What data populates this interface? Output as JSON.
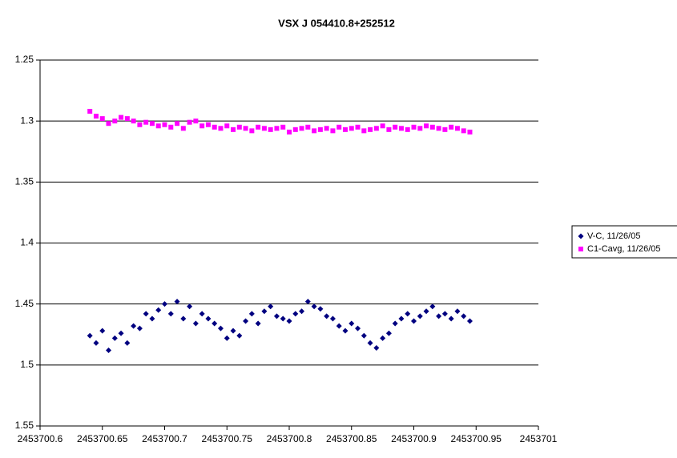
{
  "chart_data": {
    "type": "scatter",
    "title": "VSX J 054410.8+252512",
    "x": [
      2453700.64,
      2453700.645,
      2453700.65,
      2453700.655,
      2453700.66,
      2453700.665,
      2453700.67,
      2453700.675,
      2453700.68,
      2453700.685,
      2453700.69,
      2453700.695,
      2453700.7,
      2453700.705,
      2453700.71,
      2453700.715,
      2453700.72,
      2453700.725,
      2453700.73,
      2453700.735,
      2453700.74,
      2453700.745,
      2453700.75,
      2453700.755,
      2453700.76,
      2453700.765,
      2453700.77,
      2453700.775,
      2453700.78,
      2453700.785,
      2453700.79,
      2453700.795,
      2453700.8,
      2453700.805,
      2453700.81,
      2453700.815,
      2453700.82,
      2453700.825,
      2453700.83,
      2453700.835,
      2453700.84,
      2453700.845,
      2453700.85,
      2453700.855,
      2453700.86,
      2453700.865,
      2453700.87,
      2453700.875,
      2453700.88,
      2453700.885,
      2453700.89,
      2453700.895,
      2453700.9,
      2453700.905,
      2453700.91,
      2453700.915,
      2453700.92,
      2453700.925,
      2453700.93,
      2453700.935,
      2453700.94,
      2453700.945
    ],
    "series": [
      {
        "name": "V-C, 11/26/05",
        "color": "#000080",
        "marker": "diamond",
        "values": [
          1.476,
          1.482,
          1.472,
          1.488,
          1.478,
          1.474,
          1.482,
          1.468,
          1.47,
          1.458,
          1.462,
          1.455,
          1.45,
          1.458,
          1.448,
          1.462,
          1.452,
          1.466,
          1.458,
          1.462,
          1.466,
          1.47,
          1.478,
          1.472,
          1.476,
          1.464,
          1.458,
          1.466,
          1.456,
          1.452,
          1.46,
          1.462,
          1.464,
          1.458,
          1.456,
          1.448,
          1.452,
          1.454,
          1.46,
          1.462,
          1.468,
          1.472,
          1.466,
          1.47,
          1.476,
          1.482,
          1.486,
          1.478,
          1.474,
          1.466,
          1.462,
          1.458,
          1.464,
          1.46,
          1.456,
          1.452,
          1.46,
          1.458,
          1.462,
          1.456,
          1.46,
          1.464
        ]
      },
      {
        "name": "C1-Cavg, 11/26/05",
        "color": "#ff00ff",
        "marker": "square",
        "values": [
          1.292,
          1.296,
          1.298,
          1.302,
          1.3,
          1.297,
          1.298,
          1.3,
          1.303,
          1.301,
          1.302,
          1.304,
          1.303,
          1.305,
          1.302,
          1.306,
          1.301,
          1.3,
          1.304,
          1.303,
          1.305,
          1.306,
          1.304,
          1.307,
          1.305,
          1.306,
          1.308,
          1.305,
          1.306,
          1.307,
          1.306,
          1.305,
          1.309,
          1.307,
          1.306,
          1.305,
          1.308,
          1.307,
          1.306,
          1.308,
          1.305,
          1.307,
          1.306,
          1.305,
          1.308,
          1.307,
          1.306,
          1.304,
          1.307,
          1.305,
          1.306,
          1.307,
          1.305,
          1.306,
          1.304,
          1.305,
          1.306,
          1.307,
          1.305,
          1.306,
          1.308,
          1.309
        ]
      }
    ],
    "xlim": [
      2453700.6,
      2453701
    ],
    "xticks": [
      2453700.6,
      2453700.65,
      2453700.7,
      2453700.75,
      2453700.8,
      2453700.85,
      2453700.9,
      2453700.95,
      2453701
    ],
    "ylim": [
      1.25,
      1.55
    ],
    "y_reversed": true,
    "yticks": [
      1.25,
      1.3,
      1.35,
      1.4,
      1.45,
      1.5,
      1.55
    ],
    "grid": true,
    "legend": "right"
  }
}
